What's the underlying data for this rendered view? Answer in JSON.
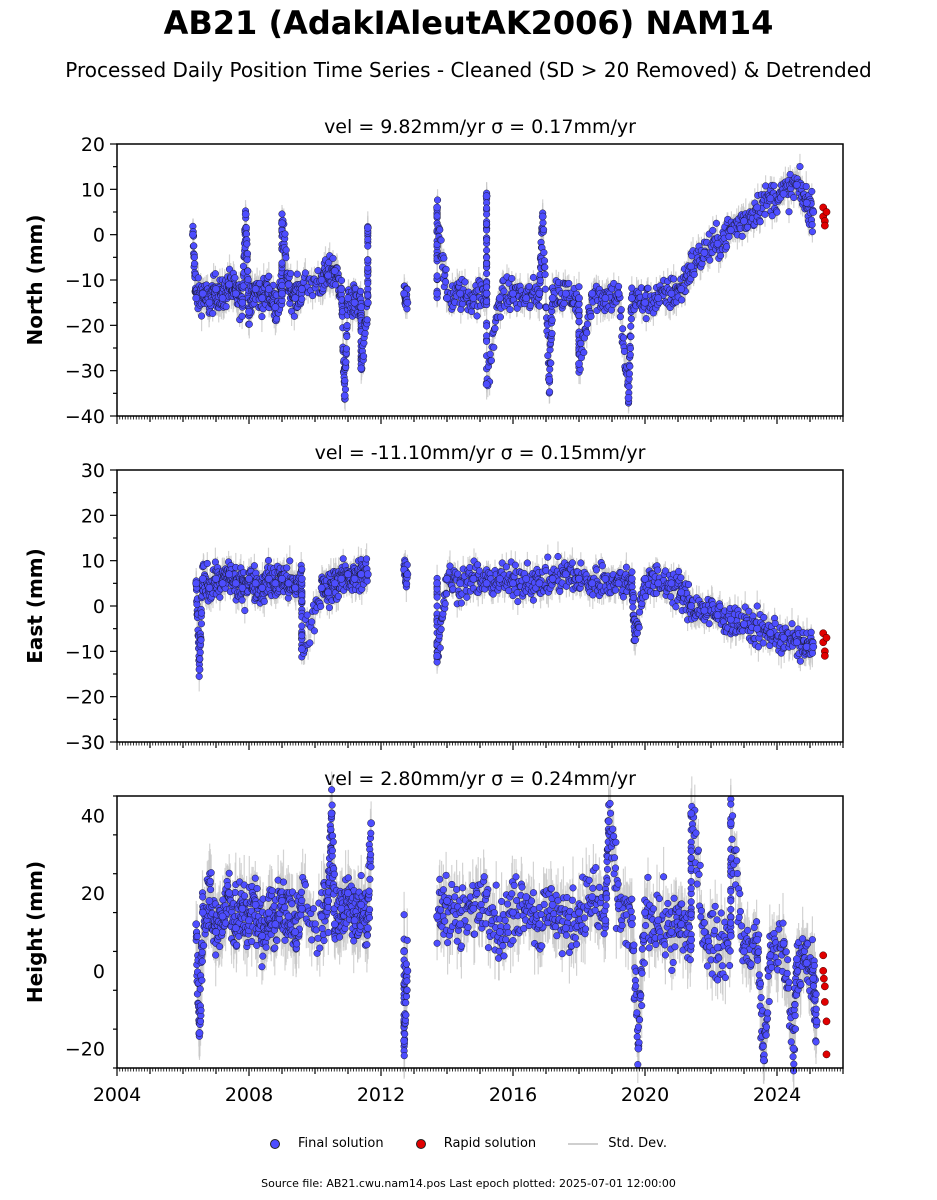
{
  "title": "AB21 (AdakIAleutAK2006) NAM14",
  "subtitle": "Processed Daily Position Time Series - Cleaned (SD > 20 Removed) & Detrended",
  "legend": [
    {
      "label": "Final solution",
      "color": "#4d4dff"
    },
    {
      "label": "Rapid solution",
      "color": "#e00000"
    },
    {
      "label": "Std. Dev.",
      "color": "#cccccc"
    }
  ],
  "source": "Source file: AB21.cwu.nam14.pos  Last epoch plotted: 2025-07-01 12:00:00",
  "colors": {
    "final": "#4d4dff",
    "rapid": "#e00000",
    "sd": "#c8c8c8"
  },
  "chart_data": [
    {
      "type": "scatter",
      "title": "vel = 9.82mm/yr   σ = 0.17mm/yr",
      "ylabel": "North (mm)",
      "xlim": [
        2004.0,
        2026.0
      ],
      "ylim": [
        -40,
        20
      ],
      "yticks": [
        -40,
        -30,
        -20,
        -10,
        0,
        10,
        20
      ],
      "xticks": [
        2004,
        2008,
        2012,
        2016,
        2020,
        2024
      ],
      "series": [
        {
          "name": "Final solution",
          "points": [
            [
              2006.4,
              -14
            ],
            [
              2006.6,
              -13
            ],
            [
              2006.8,
              -15
            ],
            [
              2007.0,
              -12
            ],
            [
              2007.2,
              -14
            ],
            [
              2007.4,
              -11
            ],
            [
              2007.6,
              -13
            ],
            [
              2007.8,
              -15
            ],
            [
              2008.0,
              -17
            ],
            [
              2008.2,
              -12
            ],
            [
              2008.4,
              -14
            ],
            [
              2008.6,
              -12
            ],
            [
              2008.8,
              -16
            ],
            [
              2009.0,
              -13
            ],
            [
              2009.2,
              -11
            ],
            [
              2009.4,
              -14
            ],
            [
              2009.6,
              -12
            ],
            [
              2010.2,
              -10
            ],
            [
              2010.4,
              -9
            ],
            [
              2010.6,
              -8
            ],
            [
              2010.8,
              -12
            ],
            [
              2011.0,
              -14
            ],
            [
              2011.2,
              -15
            ],
            [
              2011.4,
              -16
            ],
            [
              2011.6,
              -15
            ],
            [
              2012.7,
              -13
            ],
            [
              2012.8,
              -15
            ],
            [
              2013.7,
              -13
            ],
            [
              2014.0,
              -14
            ],
            [
              2014.4,
              -13
            ],
            [
              2014.8,
              -14
            ],
            [
              2015.2,
              -13
            ],
            [
              2015.6,
              -14
            ],
            [
              2016.0,
              -13
            ],
            [
              2016.4,
              -14
            ],
            [
              2016.8,
              -13
            ],
            [
              2017.2,
              -14
            ],
            [
              2017.6,
              -13
            ],
            [
              2018.0,
              -14
            ],
            [
              2018.4,
              -13
            ],
            [
              2018.8,
              -14
            ],
            [
              2019.2,
              -13
            ],
            [
              2019.6,
              -14
            ],
            [
              2020.0,
              -15
            ],
            [
              2020.4,
              -14
            ],
            [
              2020.8,
              -13
            ],
            [
              2021.1,
              -12
            ],
            [
              2021.4,
              -7
            ],
            [
              2021.8,
              -4
            ],
            [
              2022.2,
              -2
            ],
            [
              2022.6,
              1
            ],
            [
              2023.0,
              3
            ],
            [
              2023.4,
              6
            ],
            [
              2023.8,
              8
            ],
            [
              2024.2,
              9
            ],
            [
              2024.6,
              11
            ],
            [
              2024.9,
              7
            ],
            [
              2025.1,
              5
            ],
            [
              2006.3,
              0
            ],
            [
              2007.9,
              4.5
            ],
            [
              2009.0,
              2.5
            ],
            [
              2011.6,
              1.5
            ],
            [
              2013.7,
              6
            ],
            [
              2015.2,
              8.5
            ],
            [
              2016.9,
              4
            ],
            [
              2015.2,
              -33
            ],
            [
              2017.1,
              -32
            ],
            [
              2019.5,
              -36
            ],
            [
              2010.9,
              -35.5
            ],
            [
              2011.4,
              -29.5
            ],
            [
              2018.0,
              -28.5
            ]
          ]
        },
        {
          "name": "Rapid solution",
          "points": [
            [
              2025.4,
              6
            ],
            [
              2025.4,
              4
            ],
            [
              2025.45,
              3
            ],
            [
              2025.45,
              2
            ],
            [
              2025.5,
              5
            ]
          ]
        }
      ]
    },
    {
      "type": "scatter",
      "title": "vel = -11.10mm/yr   σ = 0.15mm/yr",
      "ylabel": "East (mm)",
      "xlim": [
        2004.0,
        2026.0
      ],
      "ylim": [
        -30,
        30
      ],
      "yticks": [
        -30,
        -20,
        -10,
        0,
        10,
        20,
        30
      ],
      "xticks": [
        2004,
        2008,
        2012,
        2016,
        2020,
        2024
      ],
      "series": [
        {
          "name": "Final solution",
          "points": [
            [
              2006.4,
              5
            ],
            [
              2006.6,
              6
            ],
            [
              2006.8,
              4
            ],
            [
              2007.0,
              6
            ],
            [
              2007.2,
              5
            ],
            [
              2007.4,
              7
            ],
            [
              2007.6,
              5
            ],
            [
              2007.8,
              4
            ],
            [
              2008.0,
              6
            ],
            [
              2008.2,
              5
            ],
            [
              2008.4,
              4
            ],
            [
              2008.6,
              6
            ],
            [
              2008.8,
              5
            ],
            [
              2009.0,
              6
            ],
            [
              2009.2,
              5
            ],
            [
              2009.4,
              4
            ],
            [
              2009.6,
              6
            ],
            [
              2010.2,
              4
            ],
            [
              2010.4,
              3
            ],
            [
              2010.6,
              5
            ],
            [
              2010.8,
              6
            ],
            [
              2011.0,
              7
            ],
            [
              2011.2,
              6
            ],
            [
              2011.4,
              7
            ],
            [
              2011.6,
              7
            ],
            [
              2012.7,
              8
            ],
            [
              2012.8,
              7
            ],
            [
              2013.7,
              5
            ],
            [
              2014.0,
              6
            ],
            [
              2014.4,
              5
            ],
            [
              2014.8,
              6
            ],
            [
              2015.2,
              5
            ],
            [
              2015.6,
              6
            ],
            [
              2016.0,
              5
            ],
            [
              2016.4,
              6
            ],
            [
              2016.8,
              5
            ],
            [
              2017.2,
              6
            ],
            [
              2017.6,
              7
            ],
            [
              2018.0,
              6
            ],
            [
              2018.4,
              5
            ],
            [
              2018.8,
              6
            ],
            [
              2019.2,
              5
            ],
            [
              2019.6,
              6
            ],
            [
              2020.0,
              6
            ],
            [
              2020.4,
              5
            ],
            [
              2020.8,
              5
            ],
            [
              2021.1,
              3
            ],
            [
              2021.4,
              0
            ],
            [
              2021.8,
              -1
            ],
            [
              2022.2,
              -2
            ],
            [
              2022.6,
              -3
            ],
            [
              2023.0,
              -4
            ],
            [
              2023.4,
              -5
            ],
            [
              2023.8,
              -6
            ],
            [
              2024.2,
              -7
            ],
            [
              2024.6,
              -8
            ],
            [
              2024.9,
              -9
            ],
            [
              2025.1,
              -9
            ],
            [
              2006.5,
              -14
            ],
            [
              2009.6,
              -9.5
            ],
            [
              2013.7,
              -11
            ],
            [
              2019.7,
              -7.5
            ]
          ]
        },
        {
          "name": "Rapid solution",
          "points": [
            [
              2025.4,
              -6
            ],
            [
              2025.4,
              -8
            ],
            [
              2025.45,
              -10
            ],
            [
              2025.45,
              -11
            ],
            [
              2025.5,
              -7
            ]
          ]
        }
      ]
    },
    {
      "type": "scatter",
      "title": "vel = 2.80mm/yr   σ = 0.24mm/yr",
      "ylabel": "Height (mm)",
      "xlim": [
        2004.0,
        2026.0
      ],
      "ylim": [
        -25,
        45
      ],
      "yticks": [
        -20,
        0,
        20,
        40
      ],
      "xticks": [
        2004,
        2008,
        2012,
        2016,
        2020,
        2024
      ],
      "series": [
        {
          "name": "Final solution",
          "points": [
            [
              2006.4,
              12
            ],
            [
              2006.6,
              15
            ],
            [
              2006.8,
              18
            ],
            [
              2007.0,
              10
            ],
            [
              2007.2,
              14
            ],
            [
              2007.4,
              20
            ],
            [
              2007.6,
              11
            ],
            [
              2007.8,
              16
            ],
            [
              2008.0,
              13
            ],
            [
              2008.2,
              17
            ],
            [
              2008.4,
              9
            ],
            [
              2008.6,
              15
            ],
            [
              2008.8,
              12
            ],
            [
              2009.0,
              18
            ],
            [
              2009.2,
              14
            ],
            [
              2009.4,
              10
            ],
            [
              2009.6,
              16
            ],
            [
              2010.2,
              14
            ],
            [
              2010.4,
              18
            ],
            [
              2010.6,
              12
            ],
            [
              2010.8,
              16
            ],
            [
              2011.0,
              20
            ],
            [
              2011.2,
              13
            ],
            [
              2011.4,
              17
            ],
            [
              2011.6,
              11
            ],
            [
              2012.7,
              5
            ],
            [
              2012.8,
              0
            ],
            [
              2013.7,
              14
            ],
            [
              2014.0,
              18
            ],
            [
              2014.4,
              12
            ],
            [
              2014.8,
              16
            ],
            [
              2015.2,
              20
            ],
            [
              2015.6,
              10
            ],
            [
              2016.0,
              15
            ],
            [
              2016.4,
              19
            ],
            [
              2016.8,
              12
            ],
            [
              2017.2,
              17
            ],
            [
              2017.6,
              11
            ],
            [
              2018.0,
              15
            ],
            [
              2018.4,
              19
            ],
            [
              2018.8,
              13
            ],
            [
              2019.2,
              17
            ],
            [
              2019.6,
              12
            ],
            [
              2020.0,
              15
            ],
            [
              2020.4,
              13
            ],
            [
              2020.8,
              10
            ],
            [
              2021.1,
              12
            ],
            [
              2021.4,
              8
            ],
            [
              2021.8,
              10
            ],
            [
              2022.2,
              6
            ],
            [
              2022.6,
              9
            ],
            [
              2023.0,
              5
            ],
            [
              2023.4,
              8
            ],
            [
              2023.8,
              4
            ],
            [
              2024.2,
              7
            ],
            [
              2024.6,
              3
            ],
            [
              2024.9,
              2
            ],
            [
              2025.1,
              -2
            ],
            [
              2010.5,
              40.5
            ],
            [
              2011.7,
              38
            ],
            [
              2021.4,
              40.5
            ],
            [
              2022.6,
              38
            ],
            [
              2018.9,
              38.5
            ],
            [
              2006.5,
              -16
            ],
            [
              2012.7,
              -18
            ],
            [
              2019.8,
              -20
            ],
            [
              2023.6,
              -23
            ],
            [
              2024.5,
              -20
            ],
            [
              2025.2,
              -13
            ]
          ]
        },
        {
          "name": "Rapid solution",
          "points": [
            [
              2025.4,
              4
            ],
            [
              2025.4,
              0
            ],
            [
              2025.45,
              -4
            ],
            [
              2025.45,
              -8
            ],
            [
              2025.5,
              -13
            ],
            [
              2025.5,
              -21.5
            ],
            [
              2025.42,
              -2
            ]
          ]
        }
      ]
    }
  ]
}
